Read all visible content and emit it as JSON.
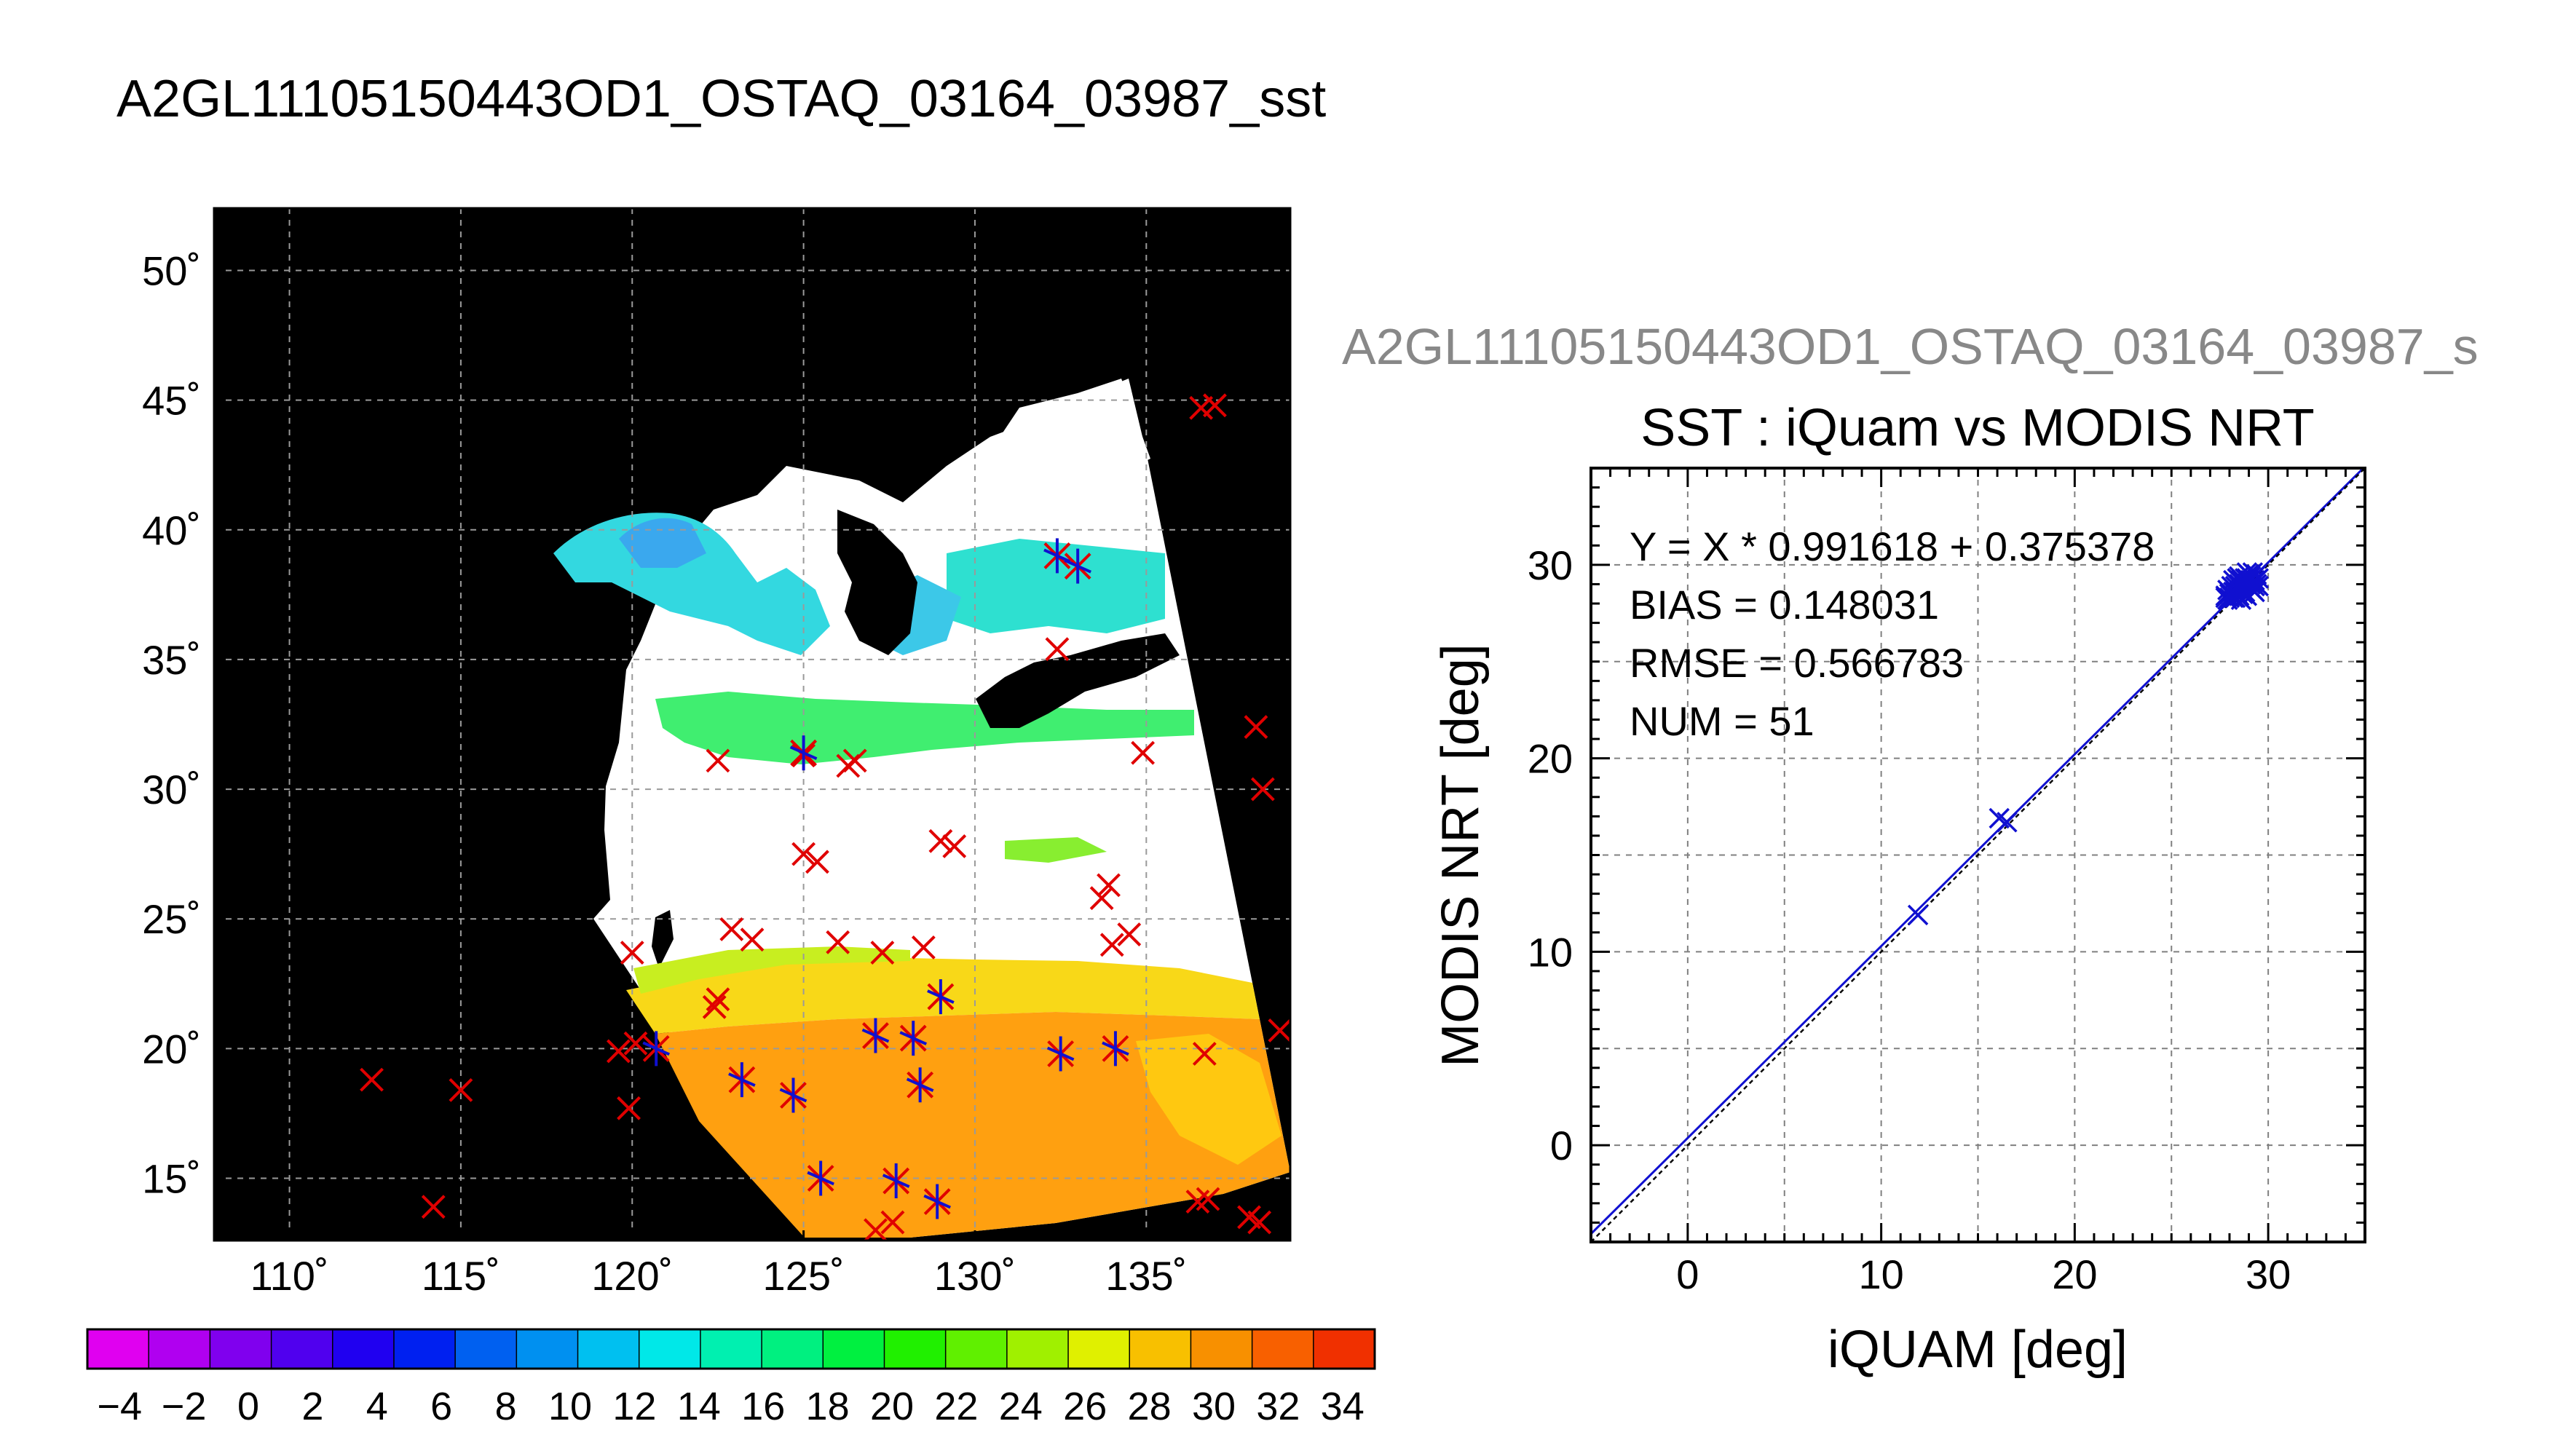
{
  "figure": {
    "title": "A2GL11105150443OD1_OSTAQ_03164_03987_sst",
    "right_title_overflow": "A2GL11105150443OD1_OSTAQ_03164_03987_s"
  },
  "map": {
    "lat_ticks": [
      "50˚",
      "45˚",
      "40˚",
      "35˚",
      "30˚",
      "25˚",
      "20˚",
      "15˚"
    ],
    "lon_ticks": [
      "110˚",
      "115˚",
      "120˚",
      "125˚",
      "130˚",
      "135˚"
    ],
    "lat_values": [
      50,
      45,
      40,
      35,
      30,
      25,
      20,
      15
    ],
    "lon_values": [
      110,
      115,
      120,
      125,
      130,
      135
    ],
    "lon_range": [
      107.8,
      139.2
    ],
    "lat_range": [
      12.6,
      52.4
    ],
    "marker_color": "#e00000",
    "match_color": "#1010d0"
  },
  "colorbar": {
    "min": -5,
    "max": 35,
    "tick_labels": [
      "−4",
      "−2",
      "0",
      "2",
      "4",
      "6",
      "8",
      "10",
      "12",
      "14",
      "16",
      "18",
      "20",
      "22",
      "24",
      "26",
      "28",
      "30",
      "32",
      "34"
    ],
    "tick_values": [
      -4,
      -2,
      0,
      2,
      4,
      6,
      8,
      10,
      12,
      14,
      16,
      18,
      20,
      22,
      24,
      26,
      28,
      30,
      32,
      34
    ]
  },
  "chart_data": {
    "type": "scatter",
    "title": "SST : iQuam vs MODIS NRT",
    "xlabel": "iQUAM [deg]",
    "ylabel": "MODIS NRT [deg]",
    "xlim": [
      -5,
      35
    ],
    "ylim": [
      -5,
      35
    ],
    "xticks": [
      0,
      10,
      20,
      30
    ],
    "yticks": [
      0,
      10,
      20,
      30
    ],
    "xtick_labels": [
      "0",
      "10",
      "20",
      "30"
    ],
    "ytick_labels": [
      "0",
      "10",
      "20",
      "30"
    ],
    "grid": true,
    "stats": [
      "Y = X * 0.991618 + 0.375378",
      "BIAS = 0.148031",
      "RMSE = 0.566783",
      "NUM = 51"
    ],
    "fit": {
      "slope": 0.991618,
      "intercept": 0.375378
    },
    "marker_color": "#1010d0",
    "points": [
      [
        11.9,
        11.9
      ],
      [
        16.1,
        16.9
      ],
      [
        16.5,
        16.7
      ],
      [
        27.8,
        28.4
      ],
      [
        27.9,
        28.7
      ],
      [
        28.0,
        28.5
      ],
      [
        28.1,
        28.9
      ],
      [
        28.2,
        28.3
      ],
      [
        28.3,
        28.6
      ],
      [
        28.4,
        29.0
      ],
      [
        28.5,
        28.4
      ],
      [
        28.6,
        28.8
      ],
      [
        28.7,
        29.1
      ],
      [
        28.8,
        28.6
      ],
      [
        28.9,
        29.3
      ],
      [
        29.0,
        28.9
      ],
      [
        29.1,
        29.4
      ],
      [
        29.2,
        28.7
      ],
      [
        29.3,
        29.2
      ],
      [
        29.4,
        29.5
      ],
      [
        29.5,
        28.9
      ],
      [
        28.2,
        29.2
      ],
      [
        28.5,
        29.4
      ],
      [
        28.9,
        29.6
      ],
      [
        29.2,
        29.6
      ],
      [
        27.9,
        28.2
      ],
      [
        28.1,
        28.4
      ],
      [
        28.3,
        28.9
      ],
      [
        28.6,
        28.2
      ],
      [
        28.8,
        29.0
      ],
      [
        29.0,
        29.5
      ],
      [
        29.3,
        28.6
      ],
      [
        29.5,
        29.3
      ],
      [
        28.4,
        28.5
      ],
      [
        28.7,
        28.5
      ],
      [
        29.1,
        29.0
      ],
      [
        28.0,
        28.3
      ],
      [
        28.6,
        29.2
      ],
      [
        29.4,
        29.0
      ],
      [
        28.9,
        28.4
      ],
      [
        28.3,
        28.3
      ],
      [
        29.2,
        29.1
      ],
      [
        28.5,
        29.0
      ],
      [
        27.8,
        28.3
      ],
      [
        29.0,
        29.2
      ],
      [
        28.8,
        29.3
      ],
      [
        29.3,
        28.9
      ],
      [
        28.2,
        28.6
      ],
      [
        28.6,
        28.6
      ],
      [
        29.1,
        28.8
      ],
      [
        28.4,
        29.3
      ]
    ]
  }
}
